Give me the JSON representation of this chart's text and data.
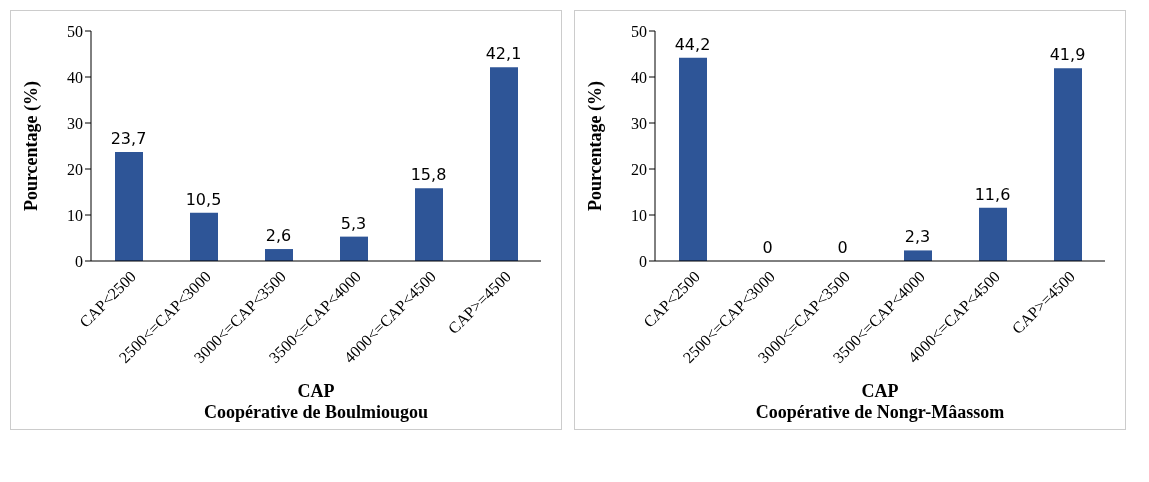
{
  "chart_data": [
    {
      "type": "bar",
      "xlabel": "CAP",
      "ylabel": "Pourcentage (%)",
      "annotations": [
        "Coopérative de Boulmiougou"
      ],
      "categories": [
        "CAP<2500",
        "2500<=CAP<3000",
        "3000<=CAP<3500",
        "3500<=CAP<4000",
        "4000<=CAP<4500",
        "CAP>=4500"
      ],
      "values": [
        23.7,
        10.5,
        2.6,
        5.3,
        15.8,
        42.1
      ],
      "value_labels": [
        "23,7",
        "10,5",
        "2,6",
        "5,3",
        "15,8",
        "42,1"
      ],
      "color": "#2e5597",
      "ylim": [
        0,
        50
      ],
      "yticks": [
        0,
        10,
        20,
        30,
        40,
        50
      ],
      "grid": false
    },
    {
      "type": "bar",
      "xlabel": "CAP",
      "ylabel": "Pourcentage (%)",
      "annotations": [
        "Coopérative de Nongr-Mâassom"
      ],
      "categories": [
        "CAP<2500",
        "2500<=CAP<3000",
        "3000<=CAP<3500",
        "3500<=CAP<4000",
        "4000<=CAP<4500",
        "CAP>=4500"
      ],
      "values": [
        44.2,
        0,
        0,
        2.3,
        11.6,
        41.9
      ],
      "value_labels": [
        "44,2",
        "0",
        "0",
        "2,3",
        "11,6",
        "41,9"
      ],
      "color": "#2e5597",
      "ylim": [
        0,
        50
      ],
      "yticks": [
        0,
        10,
        20,
        30,
        40,
        50
      ],
      "grid": false
    }
  ]
}
